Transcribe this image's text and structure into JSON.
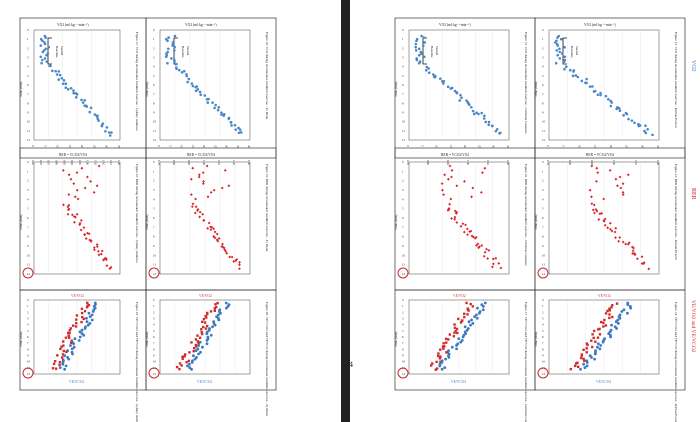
{
  "page_number": "4",
  "left_page": {
    "figures": [
      {
        "id": "l-vo2-a",
        "caption": "Figure 21. VO2 during incremental treadmill exercise - Sydney Andrews",
        "top_label": "VO2 (ml·kg⁻¹·min⁻¹)",
        "time_label": "Time (min)",
        "baseline_label": "Baseline Seated",
        "ticks": [
          "0",
          "5",
          "10",
          "15",
          "20",
          "25",
          "30",
          "35"
        ]
      },
      {
        "id": "l-vo2-b",
        "caption": "Figure 18. VO2 during incremental treadmill exercise - Ty Benn",
        "top_label": "VO2 (ml·kg⁻¹·min⁻¹)",
        "time_label": "Time (min)",
        "baseline_label": "Baseline Seated",
        "ticks": [
          "0",
          "5",
          "10",
          "15",
          "20",
          "25",
          "30",
          "35",
          "40"
        ]
      },
      {
        "id": "l-rer-a",
        "caption": "Figure 22. RER during incremental treadmill exercise - Sydney Andrews",
        "top_label": "RER = VCO2/VO2",
        "time_label": "Time (min)",
        "ticks": [
          "0.65",
          "0.70",
          "0.75",
          "0.80",
          "0.85",
          "0.90",
          "0.95",
          "1.00",
          "1.05",
          "1.10",
          "1.15",
          "1.20"
        ]
      },
      {
        "id": "l-rer-b",
        "caption": "Figure 19. RER during incremental treadmill exercise - Ty Benn",
        "top_label": "RER = VCO2/VO2",
        "time_label": "Time (min)",
        "ticks": [
          "0.70",
          "0.80",
          "0.90",
          "1.00",
          "1.10",
          "1.20",
          "1.30"
        ]
      },
      {
        "id": "l-vv-a",
        "caption": "Figure 23. VE/VCO2 and VE/VO2 during incremental treadmill exercise - Sydney Andrews",
        "top_label": "VE/VO2",
        "bottom_label": "VE/VCO2",
        "time_label": "Time (min)"
      },
      {
        "id": "l-vv-b",
        "caption": "Figure 20. VE/VCO2 and VE/VO2 during incremental treadmill exercise - Ty Benn",
        "top_label": "VE/VO2",
        "bottom_label": "VE/VCO2",
        "time_label": "Time (min)"
      }
    ]
  },
  "right_page": {
    "figures": [
      {
        "id": "r-vo2-a",
        "caption": "Figure 15. VO2 during incremental treadmill exercise - Christine Cumento",
        "top_label": "VO2 (ml·kg⁻¹·min⁻¹)",
        "time_label": "Time (min)",
        "baseline_label": "Baseline Seated"
      },
      {
        "id": "r-vo2-b",
        "caption": "Figure 12. VO2 during incremental treadmill exercise - Killian Everett",
        "top_label": "VO2 (ml·kg⁻¹·min⁻¹)",
        "time_label": "Time (min)",
        "baseline_label": "Baseline Seated",
        "heading": "VO2"
      },
      {
        "id": "r-rer-a",
        "caption": "Figure 16. RER during incremental treadmill exercise - Christine Cumento",
        "top_label": "RER = VCO2/VO2",
        "time_label": "Time (min)"
      },
      {
        "id": "r-rer-b",
        "caption": "Figure 13. RER during incremental treadmill exercise - Killian Everett",
        "top_label": "RER = VCO2/VO2",
        "time_label": "Time (min)",
        "heading": "RER"
      },
      {
        "id": "r-vv-a",
        "caption": "Figure 17. VE/VCO2 and VE/VO2 during incremental treadmill exercise - Christine Cumento",
        "top_label": "VE/VO2",
        "bottom_label": "VE/VCO2",
        "time_label": "Time (min)"
      },
      {
        "id": "r-vv-b",
        "caption": "Figure 14. VE/VCO2 and VE/VO2 during incremental treadmill exercise - Killian Everett",
        "top_label": "VE/VO2",
        "bottom_label": "VE/VCO2",
        "time_label": "Time (min)",
        "heading": "VE/VO2 and VE/VCO2"
      }
    ]
  },
  "colors": {
    "vo2_blue": "#4a86c8",
    "rer_red": "#d9262a",
    "ve_blue": "#3c78c0",
    "ve_red": "#d32a2a",
    "circle_red": "#c8282a",
    "heading_blue": "#3a7bd5",
    "heading_red": "#d02020"
  }
}
